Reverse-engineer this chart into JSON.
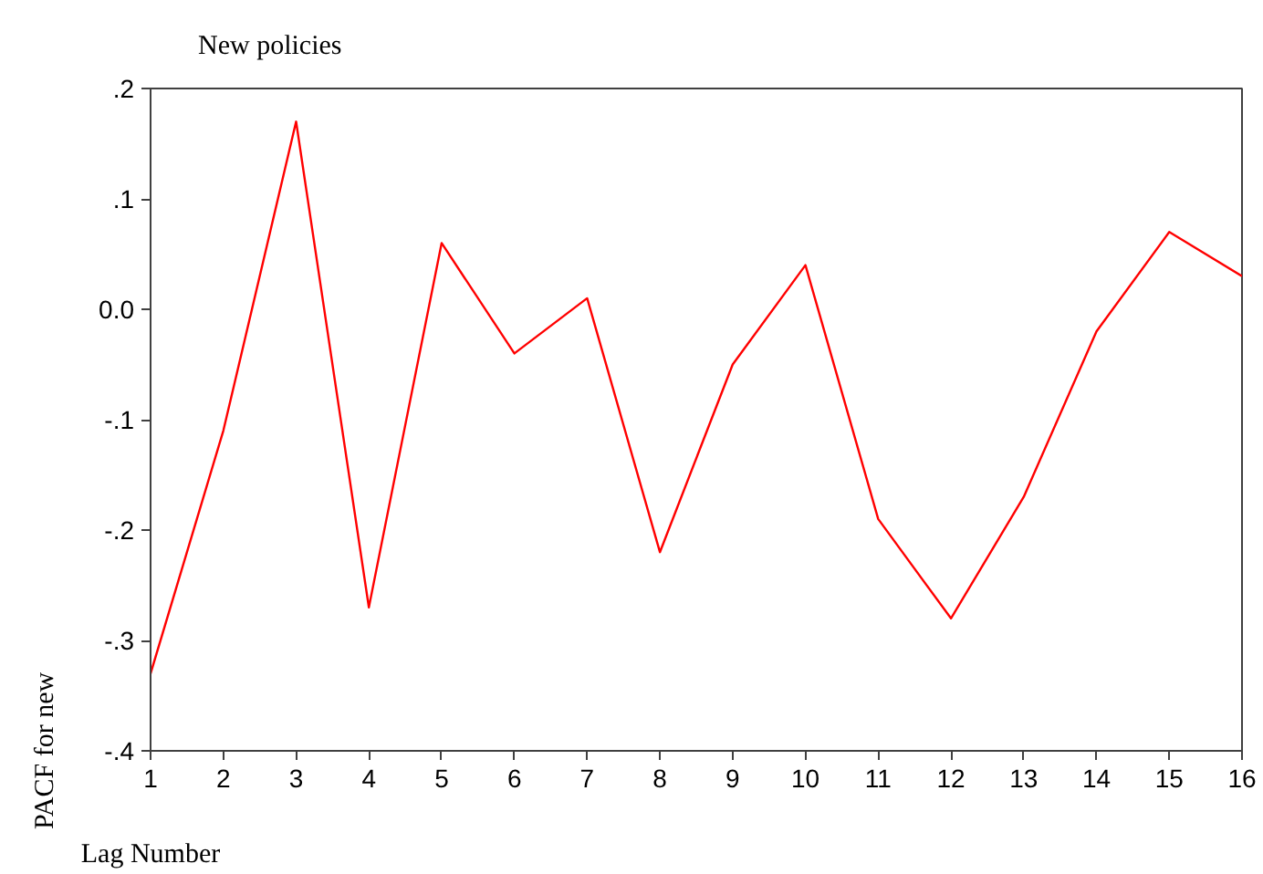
{
  "chart_data": {
    "type": "line",
    "title": "New policies",
    "xlabel": "Lag Number",
    "ylabel": "PACF for new",
    "x": [
      1,
      2,
      3,
      4,
      5,
      6,
      7,
      8,
      9,
      10,
      11,
      12,
      13,
      14,
      15,
      16
    ],
    "series": [
      {
        "color": "#ff0000",
        "values": [
          -0.33,
          -0.11,
          0.17,
          -0.27,
          0.06,
          -0.04,
          0.01,
          -0.22,
          -0.05,
          0.04,
          -0.19,
          -0.28,
          -0.17,
          -0.02,
          0.07,
          0.03
        ]
      }
    ],
    "xlim": [
      1,
      16
    ],
    "xticks": [
      1,
      2,
      3,
      4,
      5,
      6,
      7,
      8,
      9,
      10,
      11,
      12,
      13,
      14,
      15,
      16
    ],
    "ylim": [
      -0.4,
      0.2
    ],
    "yticks": [
      {
        "value": -0.4,
        "label": "-.4"
      },
      {
        "value": -0.3,
        "label": "-.3"
      },
      {
        "value": -0.2,
        "label": "-.2"
      },
      {
        "value": -0.1,
        "label": "-.1"
      },
      {
        "value": 0,
        "label": "0.0"
      },
      {
        "value": 0.1,
        "label": ".1"
      },
      {
        "value": 0.2,
        "label": ".2"
      }
    ],
    "grid": false,
    "line_style": "solid"
  }
}
